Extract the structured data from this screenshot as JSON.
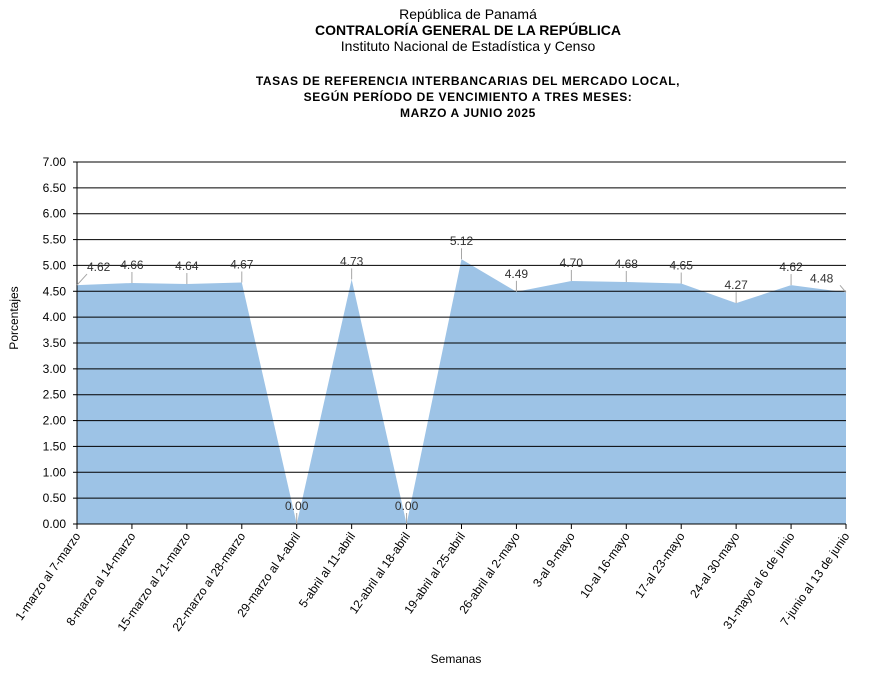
{
  "header": {
    "line1": "República de Panamá",
    "line2": "CONTRALORÍA GENERAL DE LA REPÚBLICA",
    "line3": "Instituto Nacional de Estadística y Censo"
  },
  "colors": {
    "area": "#9dc3e6",
    "grid": "#000000",
    "leader": "#a6a6a6"
  },
  "chart_data": {
    "type": "area",
    "title": [
      "TASAS DE REFERENCIA INTERBANCARIAS DEL MERCADO LOCAL,",
      "SEGÚN PERÍODO DE VENCIMIENTO A TRES MESES:",
      "MARZO A JUNIO 2025"
    ],
    "xlabel": "Semanas",
    "ylabel": "Porcentajes",
    "ylim": [
      0,
      7
    ],
    "yticks": [
      "0.00",
      "0.50",
      "1.00",
      "1.50",
      "2.00",
      "2.50",
      "3.00",
      "3.50",
      "4.00",
      "4.50",
      "5.00",
      "5.50",
      "6.00",
      "6.50",
      "7.00"
    ],
    "grid": true,
    "categories": [
      "1-marzo al 7-marzo",
      "8-marzo al 14-marzo",
      "15-marzo al 21-marzo",
      "22-marzo al 28-marzo",
      "29-marzo al 4-abril",
      "5-abril al 11-abril",
      "12-abril al 18-abril",
      "19-abril al 25-abril",
      "26-abril al 2-mayo",
      "3-al 9-mayo",
      "10-al 16-mayo",
      "17-al 23-mayo",
      "24-al 30-mayo",
      "31-mayo al 6 de junio",
      "7-junio al 13 de junio"
    ],
    "values": [
      4.62,
      4.66,
      4.64,
      4.67,
      0.0,
      4.73,
      0.0,
      5.12,
      4.49,
      4.7,
      4.68,
      4.65,
      4.27,
      4.62,
      4.48
    ],
    "data_labels": [
      "4.62",
      "4.66",
      "4.64",
      "4.67",
      "0.00",
      "4.73",
      "0.00",
      "5.12",
      "4.49",
      "4.70",
      "4.68",
      "4.65",
      "4.27",
      "4.62",
      "4.48"
    ]
  }
}
